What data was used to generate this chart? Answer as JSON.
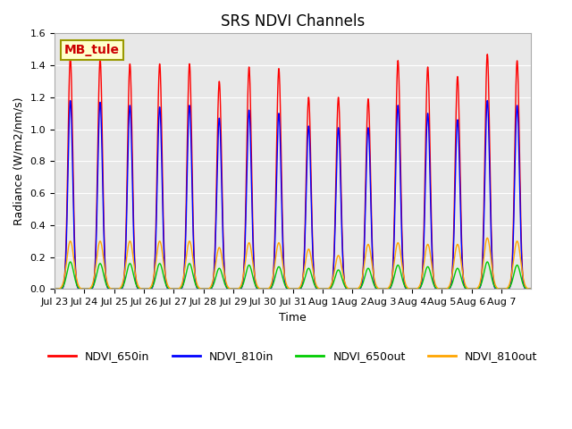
{
  "title": "SRS NDVI Channels",
  "xlabel": "Time",
  "ylabel": "Radiance (W/m2/nm/s)",
  "annotation": "MB_tule",
  "annotation_facecolor": "#ffffcc",
  "annotation_edgecolor": "#999900",
  "annotation_textcolor": "#cc0000",
  "bg_color": "#e8e8e8",
  "ylim": [
    0.0,
    1.6
  ],
  "series": {
    "NDVI_650in": {
      "color": "#ff0000",
      "lw": 1.2
    },
    "NDVI_810in": {
      "color": "#0000ff",
      "lw": 1.2
    },
    "NDVI_650out": {
      "color": "#00cc00",
      "lw": 1.2
    },
    "NDVI_810out": {
      "color": "#ffa500",
      "lw": 1.2
    }
  },
  "xtick_labels": [
    "Jul 23",
    "Jul 24",
    "Jul 25",
    "Jul 26",
    "Jul 27",
    "Jul 28",
    "Jul 29",
    "Jul 30",
    "Jul 31",
    "Aug 1",
    "Aug 2",
    "Aug 3",
    "Aug 4",
    "Aug 5",
    "Aug 6",
    "Aug 7"
  ],
  "peaks_650in": [
    1.45,
    1.44,
    1.41,
    1.41,
    1.41,
    1.3,
    1.39,
    1.38,
    1.2,
    1.2,
    1.19,
    1.43,
    1.39,
    1.33,
    1.47,
    1.43
  ],
  "peaks_810in": [
    1.18,
    1.17,
    1.15,
    1.14,
    1.15,
    1.07,
    1.12,
    1.1,
    1.02,
    1.01,
    1.01,
    1.15,
    1.1,
    1.06,
    1.18,
    1.15
  ],
  "peaks_650out": [
    0.17,
    0.16,
    0.16,
    0.16,
    0.16,
    0.13,
    0.15,
    0.14,
    0.13,
    0.12,
    0.13,
    0.15,
    0.14,
    0.13,
    0.17,
    0.15
  ],
  "peaks_810out": [
    0.3,
    0.3,
    0.3,
    0.3,
    0.3,
    0.26,
    0.29,
    0.29,
    0.25,
    0.21,
    0.28,
    0.29,
    0.28,
    0.28,
    0.32,
    0.3
  ],
  "n_days": 16,
  "pts_per_day": 120
}
